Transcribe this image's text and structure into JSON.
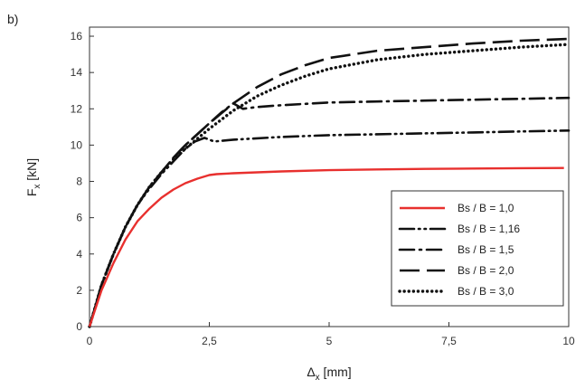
{
  "chart_data": {
    "type": "line",
    "panel_label": "b)",
    "xlabel": "Δ",
    "xlabel_sub": "x",
    "xlabel_unit": " [mm]",
    "ylabel": "F",
    "ylabel_sub": "x",
    "ylabel_unit": " [kN]",
    "xlim": [
      0,
      10
    ],
    "ylim": [
      0,
      16.5
    ],
    "xticks": [
      0,
      2.5,
      5,
      7.5,
      10
    ],
    "xtick_labels": [
      "0",
      "2,5",
      "5",
      "7,5",
      "10"
    ],
    "yticks": [
      0,
      2,
      4,
      6,
      8,
      10,
      12,
      14,
      16
    ],
    "ytick_labels": [
      "0",
      "2",
      "4",
      "6",
      "8",
      "10",
      "12",
      "14",
      "16"
    ],
    "grid": false,
    "legend_position": "right",
    "series": [
      {
        "name": "Bs / B = 1,0",
        "color": "#e8302e",
        "dash": "solid",
        "x": [
          0,
          0.25,
          0.5,
          0.75,
          1.0,
          1.25,
          1.5,
          1.75,
          2.0,
          2.25,
          2.5,
          2.65,
          3.0,
          4.0,
          5.0,
          6.0,
          7.0,
          8.0,
          9.0,
          9.9
        ],
        "y": [
          0,
          2.0,
          3.5,
          4.8,
          5.8,
          6.5,
          7.1,
          7.55,
          7.9,
          8.15,
          8.35,
          8.4,
          8.45,
          8.55,
          8.62,
          8.66,
          8.69,
          8.71,
          8.73,
          8.74
        ]
      },
      {
        "name": "Bs / B = 1,16",
        "color": "#111111",
        "dash": "dashdotdot",
        "x": [
          0,
          0.25,
          0.5,
          0.75,
          1.0,
          1.25,
          1.5,
          1.75,
          2.0,
          2.2,
          2.4,
          2.6,
          3.0,
          4.0,
          5.0,
          6.0,
          7.0,
          8.0,
          9.0,
          10.0
        ],
        "y": [
          0,
          2.3,
          4.0,
          5.5,
          6.7,
          7.6,
          8.4,
          9.1,
          9.8,
          10.2,
          10.4,
          10.2,
          10.3,
          10.45,
          10.55,
          10.6,
          10.65,
          10.7,
          10.75,
          10.8
        ]
      },
      {
        "name": "Bs / B = 1,5",
        "color": "#111111",
        "dash": "dashdot",
        "x": [
          0,
          0.25,
          0.5,
          0.75,
          1.0,
          1.25,
          1.5,
          1.75,
          2.0,
          2.25,
          2.5,
          2.75,
          3.0,
          3.2,
          3.5,
          4.0,
          5.0,
          6.0,
          7.0,
          8.0,
          9.0,
          10.0
        ],
        "y": [
          0,
          2.3,
          4.0,
          5.5,
          6.7,
          7.7,
          8.5,
          9.3,
          10.0,
          10.6,
          11.2,
          11.8,
          12.3,
          12.0,
          12.1,
          12.2,
          12.35,
          12.4,
          12.45,
          12.5,
          12.55,
          12.6
        ]
      },
      {
        "name": "Bs / B = 2,0",
        "color": "#111111",
        "dash": "longdash",
        "x": [
          0,
          0.25,
          0.5,
          0.75,
          1.0,
          1.25,
          1.5,
          1.75,
          2.0,
          2.5,
          3.0,
          3.5,
          4.0,
          4.5,
          5.0,
          6.0,
          7.0,
          8.0,
          9.0,
          10.0
        ],
        "y": [
          0,
          2.3,
          4.0,
          5.5,
          6.7,
          7.7,
          8.5,
          9.3,
          10.0,
          11.2,
          12.3,
          13.2,
          13.9,
          14.4,
          14.8,
          15.2,
          15.4,
          15.6,
          15.75,
          15.85
        ]
      },
      {
        "name": "Bs / B = 3,0",
        "color": "#111111",
        "dash": "dotted",
        "x": [
          0,
          0.25,
          0.5,
          0.75,
          1.0,
          1.25,
          1.5,
          1.75,
          2.0,
          2.5,
          3.0,
          3.5,
          4.0,
          4.5,
          5.0,
          6.0,
          7.0,
          8.0,
          9.0,
          10.0
        ],
        "y": [
          0,
          2.3,
          4.0,
          5.5,
          6.7,
          7.7,
          8.5,
          9.2,
          9.8,
          10.9,
          11.9,
          12.7,
          13.3,
          13.8,
          14.2,
          14.7,
          15.0,
          15.2,
          15.4,
          15.55
        ]
      }
    ]
  }
}
